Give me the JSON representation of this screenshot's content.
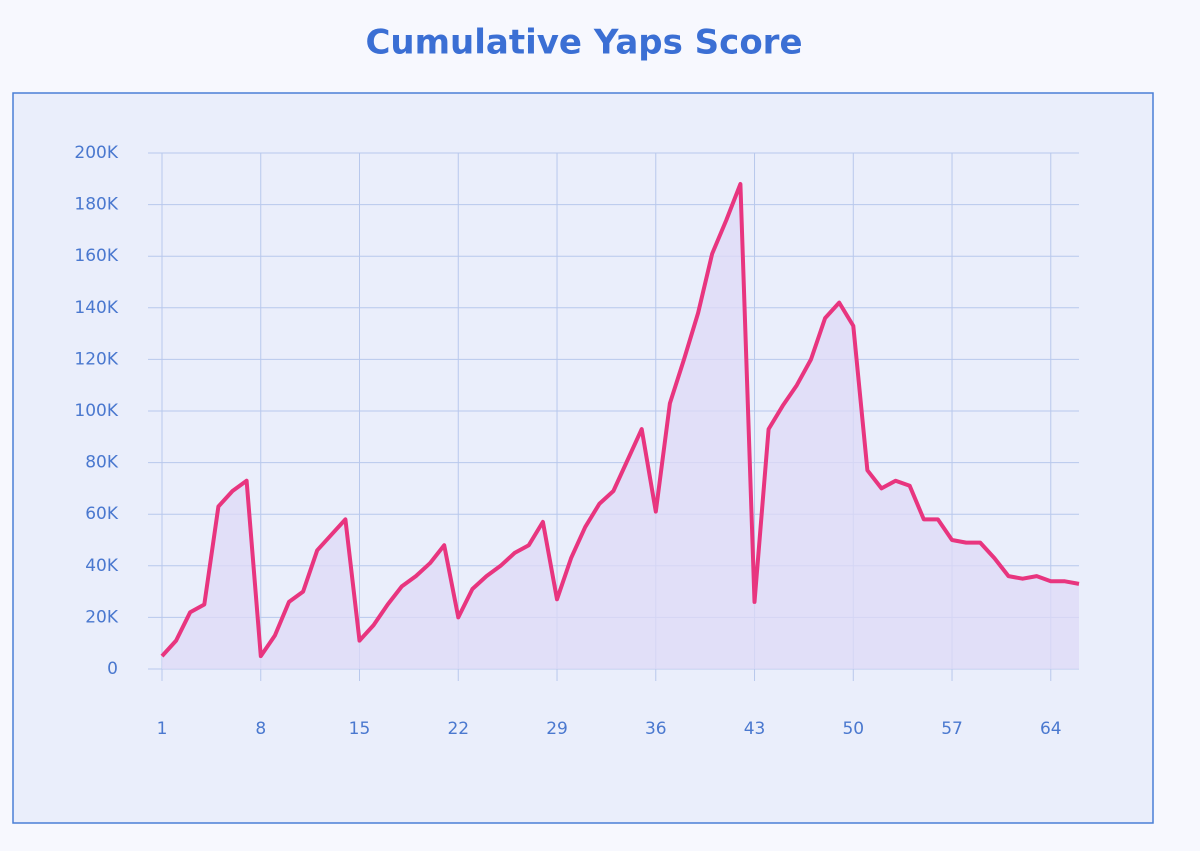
{
  "chart_data": {
    "type": "line",
    "title": "Cumulative Yaps Score",
    "x": [
      1,
      2,
      3,
      4,
      5,
      6,
      7,
      8,
      9,
      10,
      11,
      12,
      13,
      14,
      15,
      16,
      17,
      18,
      19,
      20,
      21,
      22,
      23,
      24,
      25,
      26,
      27,
      28,
      29,
      30,
      31,
      32,
      33,
      34,
      35,
      36,
      37,
      38,
      39,
      40,
      41,
      42,
      43,
      44,
      45,
      46,
      47,
      48,
      49,
      50,
      51,
      52,
      53,
      54,
      55,
      56,
      57,
      58,
      59,
      60,
      61,
      62,
      63,
      64,
      65,
      66
    ],
    "values": [
      5000,
      11000,
      22000,
      25000,
      63000,
      69000,
      73000,
      5000,
      13000,
      26000,
      30000,
      46000,
      52000,
      58000,
      11000,
      17000,
      25000,
      32000,
      36000,
      41000,
      48000,
      20000,
      31000,
      36000,
      40000,
      45000,
      48000,
      57000,
      27000,
      43000,
      55000,
      64000,
      69000,
      81000,
      93000,
      61000,
      103000,
      120000,
      138000,
      161000,
      174000,
      188000,
      26000,
      93000,
      102000,
      110000,
      120000,
      136000,
      142000,
      133000,
      77000,
      70000,
      73000,
      71000,
      58000,
      58000,
      50000,
      49000,
      49000,
      43000,
      36000,
      35000,
      36000,
      34000,
      34000,
      33000
    ],
    "color": "#e8357f",
    "fill": "#ddd9f7",
    "xlim": [
      1,
      66
    ],
    "xticks": [
      1,
      8,
      15,
      22,
      29,
      36,
      43,
      50,
      57,
      64
    ],
    "ylim": [
      0,
      200000
    ],
    "yticks": [
      {
        "value": 0,
        "label": "0"
      },
      {
        "value": 20000,
        "label": "20K"
      },
      {
        "value": 40000,
        "label": "40K"
      },
      {
        "value": 60000,
        "label": "60K"
      },
      {
        "value": 80000,
        "label": "80K"
      },
      {
        "value": 100000,
        "label": "100K"
      },
      {
        "value": 120000,
        "label": "120K"
      },
      {
        "value": 140000,
        "label": "140K"
      },
      {
        "value": 160000,
        "label": "160K"
      },
      {
        "value": 180000,
        "label": "180K"
      },
      {
        "value": 200000,
        "label": "200K"
      }
    ],
    "grid": true
  }
}
